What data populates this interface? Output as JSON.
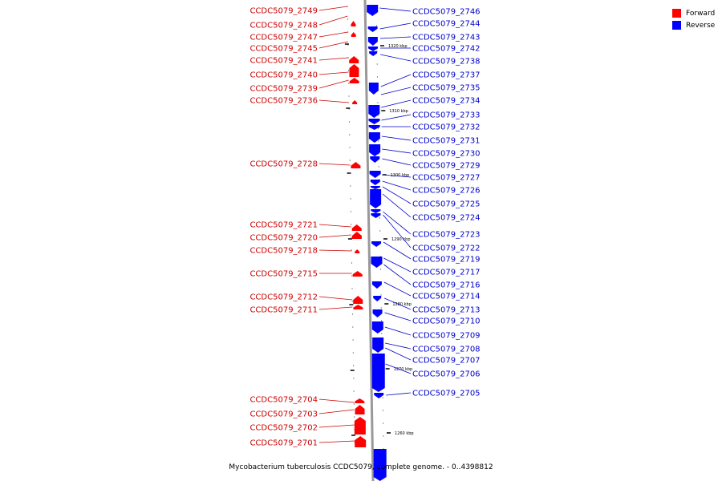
{
  "legend": {
    "items": [
      {
        "label": "Forward",
        "color": "#ff0000"
      },
      {
        "label": "Reverse",
        "color": "#0000ff"
      }
    ]
  },
  "caption": "Mycobacterium tuberculosis CCDC5079, complete genome. - 0..4398812",
  "colors": {
    "forward": "#ff0000",
    "reverse": "#0000ff",
    "forward_label": "#cc0000",
    "reverse_label": "#0000cc",
    "axis": "#999999"
  },
  "scale_ticks": [
    "1320 kbp",
    "1310 kbp",
    "1300 kbp",
    "1290 kbp",
    "1280 kbp",
    "1270 kbp",
    "1260 kbp"
  ],
  "forward_genes": [
    "CCDC5079_2749",
    "CCDC5079_2748",
    "CCDC5079_2747",
    "CCDC5079_2745",
    "CCDC5079_2741",
    "CCDC5079_2740",
    "CCDC5079_2739",
    "CCDC5079_2736",
    "CCDC5079_2728",
    "CCDC5079_2721",
    "CCDC5079_2720",
    "CCDC5079_2718",
    "CCDC5079_2715",
    "CCDC5079_2712",
    "CCDC5079_2711",
    "CCDC5079_2704",
    "CCDC5079_2703",
    "CCDC5079_2702",
    "CCDC5079_2701"
  ],
  "reverse_genes": [
    "CCDC5079_2746",
    "CCDC5079_2744",
    "CCDC5079_2743",
    "CCDC5079_2742",
    "CCDC5079_2738",
    "CCDC5079_2737",
    "CCDC5079_2735",
    "CCDC5079_2734",
    "CCDC5079_2733",
    "CCDC5079_2732",
    "CCDC5079_2731",
    "CCDC5079_2730",
    "CCDC5079_2729",
    "CCDC5079_2727",
    "CCDC5079_2726",
    "CCDC5079_2725",
    "CCDC5079_2724",
    "CCDC5079_2723",
    "CCDC5079_2722",
    "CCDC5079_2719",
    "CCDC5079_2717",
    "CCDC5079_2716",
    "CCDC5079_2714",
    "CCDC5079_2713",
    "CCDC5079_2710",
    "CCDC5079_2709",
    "CCDC5079_2708",
    "CCDC5079_2707",
    "CCDC5079_2706",
    "CCDC5079_2705"
  ]
}
